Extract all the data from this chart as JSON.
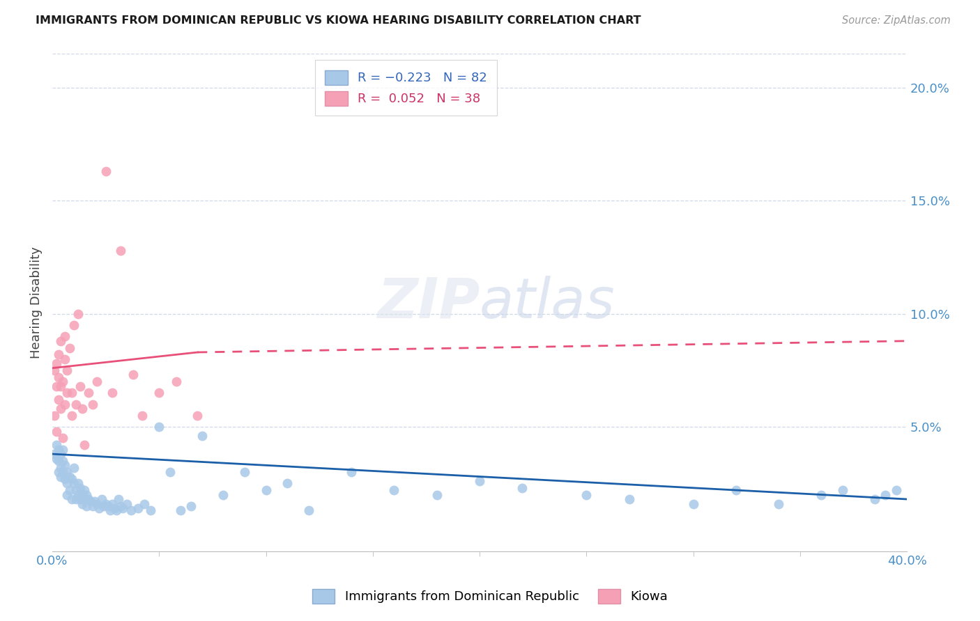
{
  "title": "IMMIGRANTS FROM DOMINICAN REPUBLIC VS KIOWA HEARING DISABILITY CORRELATION CHART",
  "source": "Source: ZipAtlas.com",
  "ylabel": "Hearing Disability",
  "xlim": [
    0.0,
    0.4
  ],
  "ylim": [
    -0.005,
    0.215
  ],
  "blue_R": -0.223,
  "blue_N": 82,
  "pink_R": 0.052,
  "pink_N": 38,
  "blue_color": "#a8c8e8",
  "pink_color": "#f5a0b5",
  "blue_line_color": "#1a5fa8",
  "pink_line_color": "#e8507a",
  "legend_label_blue": "Immigrants from Dominican Republic",
  "legend_label_pink": "Kiowa",
  "blue_scatter_x": [
    0.001,
    0.002,
    0.002,
    0.003,
    0.003,
    0.003,
    0.004,
    0.004,
    0.004,
    0.005,
    0.005,
    0.005,
    0.006,
    0.006,
    0.007,
    0.007,
    0.007,
    0.008,
    0.008,
    0.009,
    0.009,
    0.01,
    0.01,
    0.011,
    0.011,
    0.012,
    0.012,
    0.013,
    0.013,
    0.014,
    0.014,
    0.015,
    0.015,
    0.016,
    0.016,
    0.017,
    0.018,
    0.019,
    0.02,
    0.021,
    0.022,
    0.023,
    0.024,
    0.025,
    0.026,
    0.027,
    0.028,
    0.029,
    0.03,
    0.031,
    0.032,
    0.033,
    0.035,
    0.037,
    0.04,
    0.043,
    0.046,
    0.05,
    0.055,
    0.06,
    0.065,
    0.07,
    0.08,
    0.09,
    0.1,
    0.11,
    0.12,
    0.14,
    0.16,
    0.18,
    0.2,
    0.22,
    0.25,
    0.27,
    0.3,
    0.32,
    0.34,
    0.36,
    0.37,
    0.385,
    0.39,
    0.395
  ],
  "blue_scatter_y": [
    0.038,
    0.042,
    0.036,
    0.04,
    0.03,
    0.035,
    0.038,
    0.032,
    0.028,
    0.035,
    0.04,
    0.03,
    0.033,
    0.027,
    0.03,
    0.025,
    0.02,
    0.028,
    0.022,
    0.027,
    0.018,
    0.025,
    0.032,
    0.022,
    0.018,
    0.02,
    0.025,
    0.018,
    0.023,
    0.016,
    0.02,
    0.018,
    0.022,
    0.015,
    0.02,
    0.018,
    0.017,
    0.015,
    0.017,
    0.016,
    0.014,
    0.018,
    0.015,
    0.016,
    0.015,
    0.013,
    0.016,
    0.014,
    0.013,
    0.018,
    0.015,
    0.014,
    0.016,
    0.013,
    0.014,
    0.016,
    0.013,
    0.05,
    0.03,
    0.013,
    0.015,
    0.046,
    0.02,
    0.03,
    0.022,
    0.025,
    0.013,
    0.03,
    0.022,
    0.02,
    0.026,
    0.023,
    0.02,
    0.018,
    0.016,
    0.022,
    0.016,
    0.02,
    0.022,
    0.018,
    0.02,
    0.022
  ],
  "pink_scatter_x": [
    0.001,
    0.001,
    0.002,
    0.002,
    0.002,
    0.003,
    0.003,
    0.003,
    0.004,
    0.004,
    0.004,
    0.005,
    0.005,
    0.006,
    0.006,
    0.006,
    0.007,
    0.007,
    0.008,
    0.009,
    0.009,
    0.01,
    0.011,
    0.012,
    0.013,
    0.014,
    0.015,
    0.017,
    0.019,
    0.021,
    0.025,
    0.028,
    0.032,
    0.038,
    0.042,
    0.05,
    0.058,
    0.068
  ],
  "pink_scatter_y": [
    0.055,
    0.075,
    0.048,
    0.068,
    0.078,
    0.062,
    0.072,
    0.082,
    0.058,
    0.068,
    0.088,
    0.045,
    0.07,
    0.06,
    0.08,
    0.09,
    0.065,
    0.075,
    0.085,
    0.055,
    0.065,
    0.095,
    0.06,
    0.1,
    0.068,
    0.058,
    0.042,
    0.065,
    0.06,
    0.07,
    0.163,
    0.065,
    0.128,
    0.073,
    0.055,
    0.065,
    0.07,
    0.055
  ],
  "pink_line_x_start": 0.0,
  "pink_line_x_solid_end": 0.068,
  "pink_line_x_dash_end": 0.4,
  "pink_line_y_start": 0.076,
  "pink_line_y_solid_end": 0.083,
  "pink_line_y_dash_end": 0.088,
  "blue_line_x_start": 0.0,
  "blue_line_x_end": 0.4,
  "blue_line_y_start": 0.038,
  "blue_line_y_end": 0.018
}
